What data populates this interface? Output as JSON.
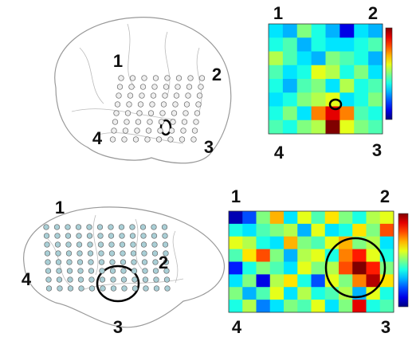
{
  "diagrams": [
    {
      "labels": [
        "1",
        "2",
        "4",
        "3"
      ]
    },
    {
      "labels": [
        "1",
        "2",
        "4",
        "3"
      ]
    }
  ],
  "chart_data": [
    {
      "type": "heatmap",
      "colormap": "jet",
      "zlim": [
        0,
        1
      ],
      "annotations": [
        "1",
        "2",
        "4",
        "3"
      ],
      "values": [
        [
          0.35,
          0.3,
          0.5,
          0.4,
          0.3,
          0.1,
          0.35,
          0.3
        ],
        [
          0.4,
          0.45,
          0.3,
          0.4,
          0.35,
          0.35,
          0.4,
          0.45
        ],
        [
          0.55,
          0.45,
          0.35,
          0.3,
          0.5,
          0.45,
          0.4,
          0.3
        ],
        [
          0.45,
          0.35,
          0.4,
          0.6,
          0.55,
          0.4,
          0.5,
          0.35
        ],
        [
          0.4,
          0.3,
          0.45,
          0.5,
          0.35,
          0.55,
          0.4,
          0.45
        ],
        [
          0.35,
          0.4,
          0.5,
          0.55,
          0.6,
          0.35,
          0.4,
          0.5
        ],
        [
          0.4,
          0.5,
          0.35,
          0.75,
          0.9,
          0.75,
          0.45,
          0.4
        ],
        [
          0.45,
          0.4,
          0.5,
          0.55,
          1.0,
          0.6,
          0.5,
          0.45
        ]
      ]
    },
    {
      "type": "heatmap",
      "colormap": "jet",
      "zlim": [
        0,
        1
      ],
      "annotations": [
        "1",
        "2",
        "4",
        "3"
      ],
      "values": [
        [
          0.05,
          0.2,
          0.5,
          0.7,
          0.35,
          0.6,
          0.45,
          0.65,
          0.5,
          0.4,
          0.55,
          0.6
        ],
        [
          0.4,
          0.35,
          0.45,
          0.5,
          0.55,
          0.3,
          0.6,
          0.35,
          0.4,
          0.65,
          0.5,
          0.8
        ],
        [
          0.6,
          0.55,
          0.4,
          0.35,
          0.7,
          0.5,
          0.45,
          0.6,
          0.7,
          0.5,
          0.55,
          0.35
        ],
        [
          0.45,
          0.65,
          0.8,
          0.5,
          0.3,
          0.55,
          0.6,
          0.4,
          0.75,
          0.85,
          0.6,
          0.4
        ],
        [
          0.15,
          0.4,
          0.5,
          0.45,
          0.35,
          0.6,
          0.5,
          0.55,
          0.8,
          1.0,
          0.85,
          0.5
        ],
        [
          0.35,
          0.5,
          0.1,
          0.55,
          0.65,
          0.4,
          0.2,
          0.6,
          0.5,
          0.75,
          0.95,
          0.65
        ],
        [
          0.5,
          0.3,
          0.45,
          0.6,
          0.35,
          0.55,
          0.4,
          0.45,
          0.55,
          0.3,
          0.6,
          0.4
        ],
        [
          0.4,
          0.55,
          0.25,
          0.35,
          0.5,
          0.45,
          0.6,
          0.35,
          0.5,
          0.9,
          0.4,
          0.45
        ]
      ]
    }
  ]
}
